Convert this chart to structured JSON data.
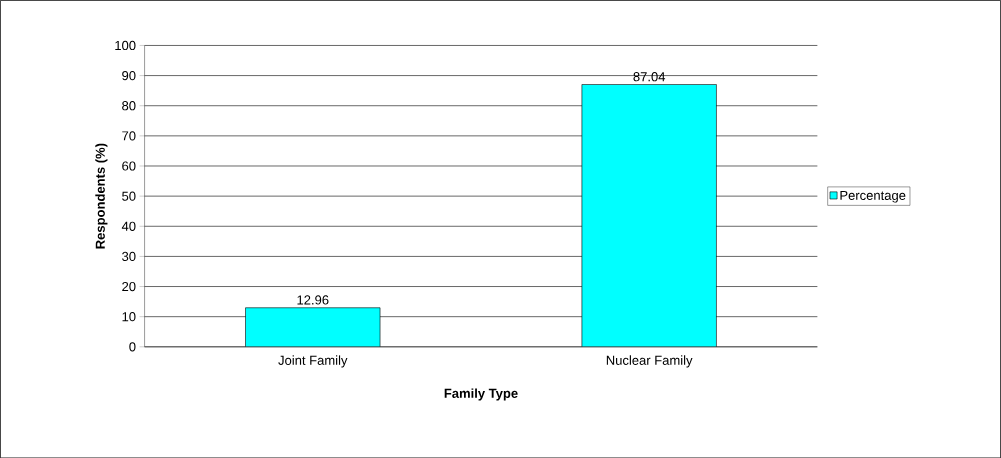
{
  "chart_data": {
    "type": "bar",
    "xlabel": "Family Type",
    "ylabel": "Respondents (%)",
    "categories": [
      "Joint Family",
      "Nuclear Family"
    ],
    "series": [
      {
        "name": "Percentage",
        "color": "#00ffff",
        "values": [
          12.96,
          87.04
        ]
      }
    ],
    "ylim": [
      0,
      100
    ],
    "yticks": [
      0,
      10,
      20,
      30,
      40,
      50,
      60,
      70,
      80,
      90,
      100
    ],
    "grid": "y",
    "legend": "right",
    "data_labels": true
  }
}
